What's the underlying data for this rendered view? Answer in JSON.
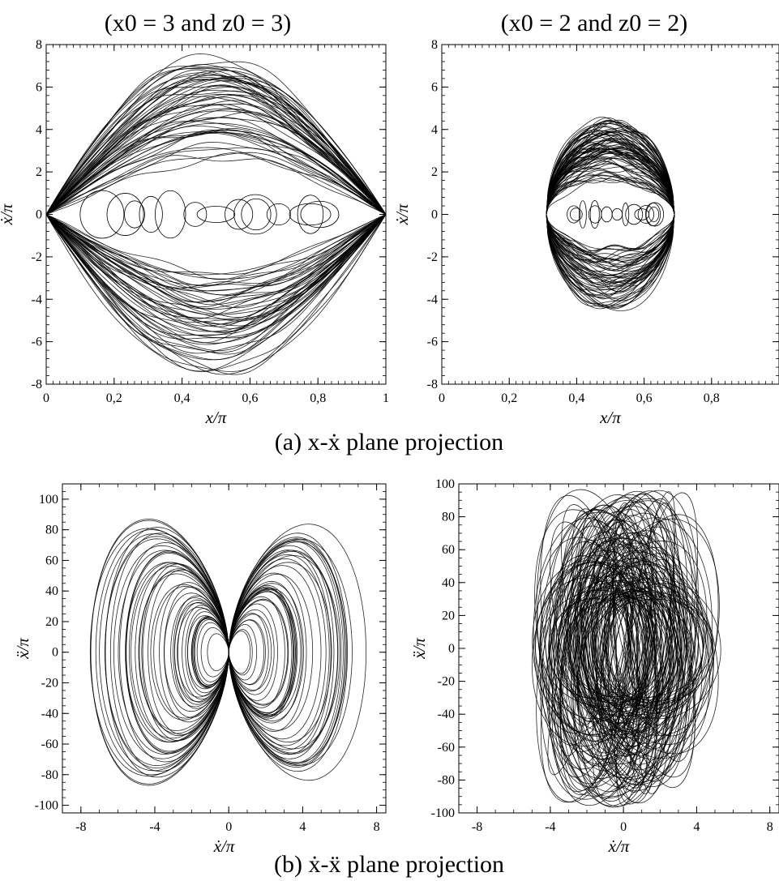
{
  "figure": {
    "caption_a": "(a) x-ẋ plane projection",
    "caption_b": "(b) ẋ-ẍ plane projection",
    "col_titles": [
      "(x0 = 3 and z0 = 3)",
      "(x0 = 2 and z0 = 2)"
    ]
  },
  "chart_data": [
    {
      "type": "line",
      "title": "(x0 = 3 and z0 = 3)",
      "xlabel": "x/π",
      "ylabel": "ẋ/π",
      "xlim": [
        0,
        1
      ],
      "ylim": [
        -8,
        8
      ],
      "xtick_labels": [
        "0",
        "0,2",
        "0,4",
        "0,6",
        "0,8",
        "1"
      ],
      "ytick_labels": [
        "-8",
        "-6",
        "-4",
        "-2",
        "0",
        "2",
        "4",
        "6",
        "8"
      ],
      "description_values": {
        "x_range": [
          0,
          1
        ],
        "max_abs_ydot": 7.5
      },
      "color": "#000000",
      "grid": false
    },
    {
      "type": "line",
      "title": "(x0 = 2 and z0 = 2)",
      "xlabel": "x/π",
      "ylabel": "ẋ/π",
      "xlim": [
        0,
        1
      ],
      "ylim": [
        -8,
        8
      ],
      "xtick_labels": [
        "0",
        "0,2",
        "0,4",
        "0,6",
        "0,8"
      ],
      "ytick_labels": [
        "-8",
        "-6",
        "-4",
        "-2",
        "0",
        "2",
        "4",
        "6",
        "8"
      ],
      "description_values": {
        "x_range": [
          0.31,
          0.69
        ],
        "max_abs_ydot": 4.5
      },
      "color": "#000000",
      "grid": false
    },
    {
      "type": "line",
      "title": "",
      "xlabel": "ẋ/π",
      "ylabel": "ẍ/π",
      "xlim": [
        -9,
        8.5
      ],
      "ylim": [
        -105,
        110
      ],
      "xtick_labels": [
        "-8",
        "-4",
        "0",
        "4",
        "8"
      ],
      "ytick_labels": [
        "-100",
        "-80",
        "-60",
        "-40",
        "-20",
        "0",
        "20",
        "40",
        "60",
        "80",
        "100"
      ],
      "description_values": {
        "x_range": [
          -7.5,
          7.5
        ],
        "max_abs_yddot": 105
      },
      "color": "#000000",
      "grid": false
    },
    {
      "type": "line",
      "title": "",
      "xlabel": "ẋ/π",
      "ylabel": "ẍ/π",
      "xlim": [
        -9,
        8.5
      ],
      "ylim": [
        -100,
        100
      ],
      "xtick_labels": [
        "-8",
        "-4",
        "0",
        "4",
        "8"
      ],
      "ytick_labels": [
        "-100",
        "-80",
        "-60",
        "-40",
        "-20",
        "0",
        "20",
        "40",
        "60",
        "80",
        "100"
      ],
      "description_values": {
        "x_range": [
          -4.6,
          4.6
        ],
        "max_abs_yddot": 98
      },
      "color": "#000000",
      "grid": false
    }
  ]
}
